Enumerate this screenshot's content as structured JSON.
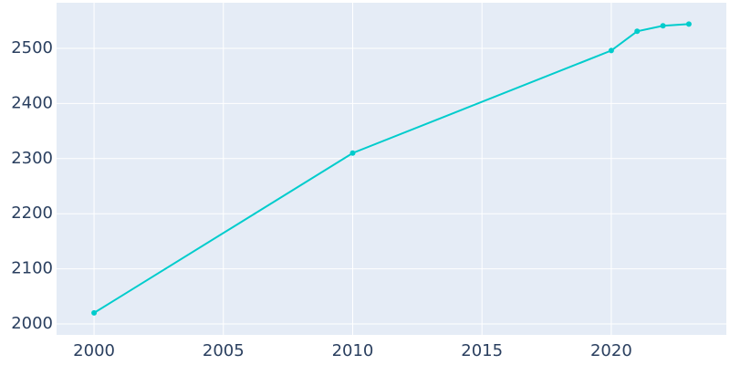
{
  "chart_data": {
    "type": "line",
    "x": [
      2000,
      2010,
      2020,
      2021,
      2022,
      2023
    ],
    "series": [
      {
        "color": "#00cccc",
        "values": [
          2020,
          2310,
          2496,
          2531,
          2541,
          2544
        ]
      }
    ],
    "xlim": [
      1998.55,
      2024.45
    ],
    "xticks": [
      2000,
      2005,
      2010,
      2015,
      2020
    ],
    "ylim": [
      1980.1,
      2582.8
    ],
    "yticks": [
      2000,
      2100,
      2200,
      2300,
      2400,
      2500
    ],
    "grid": true
  }
}
